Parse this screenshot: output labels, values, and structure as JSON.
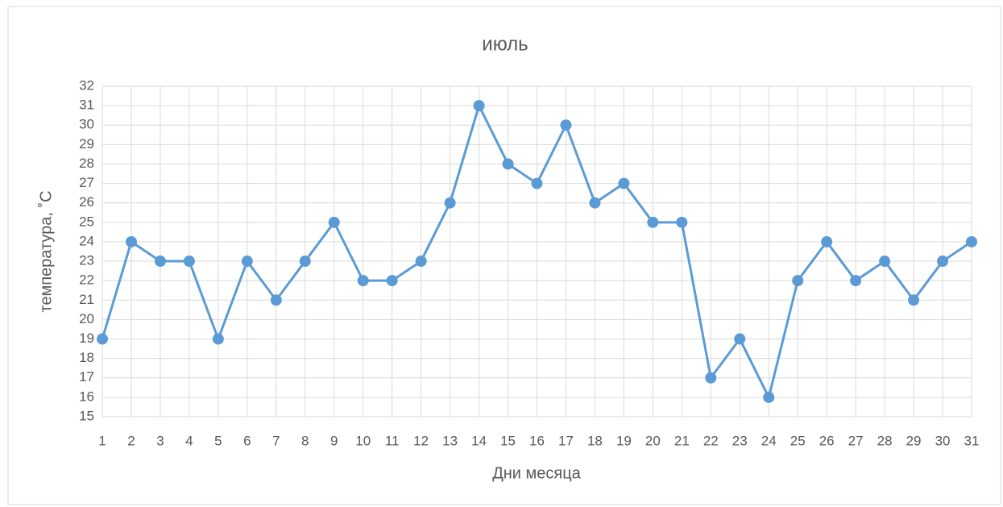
{
  "chart_data": {
    "type": "line",
    "title": "июль",
    "x_label": "Дни месяца",
    "y_label": "температура, ˚С",
    "x": [
      1,
      2,
      3,
      4,
      5,
      6,
      7,
      8,
      9,
      10,
      11,
      12,
      13,
      14,
      15,
      16,
      17,
      18,
      19,
      20,
      21,
      22,
      23,
      24,
      25,
      26,
      27,
      28,
      29,
      30,
      31
    ],
    "series": [
      {
        "name": "температура",
        "color": "#5b9bd5",
        "values": [
          19,
          24,
          23,
          23,
          19,
          23,
          21,
          23,
          25,
          22,
          22,
          23,
          26,
          31,
          28,
          27,
          30,
          26,
          27,
          25,
          25,
          17,
          19,
          16,
          22,
          24,
          22,
          23,
          21,
          23,
          24
        ]
      }
    ],
    "xlim": [
      1,
      31
    ],
    "xticks": [
      1,
      2,
      3,
      4,
      5,
      6,
      7,
      8,
      9,
      10,
      11,
      12,
      13,
      14,
      15,
      16,
      17,
      18,
      19,
      20,
      21,
      22,
      23,
      24,
      25,
      26,
      27,
      28,
      29,
      30,
      31
    ],
    "ylim": [
      15,
      32
    ],
    "yticks": [
      15,
      16,
      17,
      18,
      19,
      20,
      21,
      22,
      23,
      24,
      25,
      26,
      27,
      28,
      29,
      30,
      31,
      32
    ],
    "grid": true
  }
}
